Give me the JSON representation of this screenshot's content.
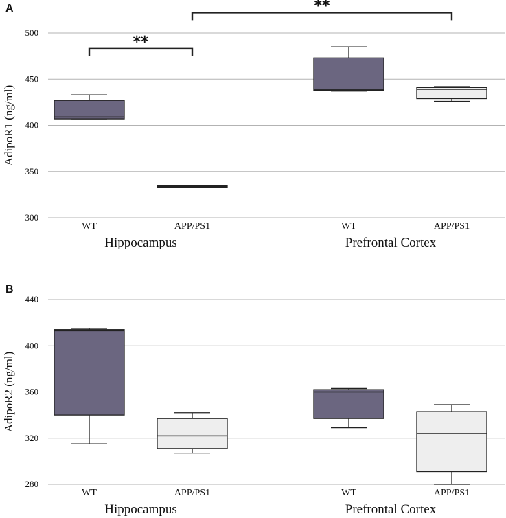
{
  "colors": {
    "wt_fill": "#6b6680",
    "app_fill": "#eeeeee",
    "stroke": "#222222",
    "grid": "#b3b3b3"
  },
  "chart_data": [
    {
      "panel_label": "A",
      "type": "box",
      "ylabel": "AdipoR1 (ng/ml)",
      "ylim": [
        300,
        500
      ],
      "yticks": [
        300,
        350,
        400,
        450,
        500
      ],
      "grid": true,
      "groups": [
        {
          "name": "Hippocampus",
          "categories": [
            "WT",
            "APP/PS1"
          ]
        },
        {
          "name": "Prefrontal Cortex",
          "categories": [
            "WT",
            "APP/PS1"
          ]
        }
      ],
      "boxes": [
        {
          "group": "Hippocampus",
          "category": "WT",
          "series": "WT",
          "min": 407,
          "q1": 407,
          "median": 409,
          "q3": 427,
          "max": 433
        },
        {
          "group": "Hippocampus",
          "category": "APP/PS1",
          "series": "APP/PS1",
          "min": 333,
          "q1": 333,
          "median": 334,
          "q3": 335,
          "max": 335
        },
        {
          "group": "Prefrontal Cortex",
          "category": "WT",
          "series": "WT",
          "min": 437,
          "q1": 438,
          "median": 439,
          "q3": 473,
          "max": 485
        },
        {
          "group": "Prefrontal Cortex",
          "category": "APP/PS1",
          "series": "APP/PS1",
          "min": 426,
          "q1": 429,
          "median": 439,
          "q3": 441,
          "max": 442
        }
      ],
      "significance": [
        {
          "label": "**",
          "from": "Hippocampus WT",
          "to": "Hippocampus APP/PS1",
          "at": 483
        },
        {
          "label": "**",
          "from": "Hippocampus APP/PS1",
          "to": "Prefrontal Cortex APP/PS1",
          "at": 522
        }
      ]
    },
    {
      "panel_label": "B",
      "type": "box",
      "ylabel": "AdipoR2 (ng/ml)",
      "ylim": [
        280,
        440
      ],
      "yticks": [
        280,
        320,
        360,
        400,
        440
      ],
      "grid": true,
      "groups": [
        {
          "name": "Hippocampus",
          "categories": [
            "WT",
            "APP/PS1"
          ]
        },
        {
          "name": "Prefrontal Cortex",
          "categories": [
            "WT",
            "APP/PS1"
          ]
        }
      ],
      "boxes": [
        {
          "group": "Hippocampus",
          "category": "WT",
          "series": "WT",
          "min": 315,
          "q1": 340,
          "median": 413,
          "q3": 414,
          "max": 415
        },
        {
          "group": "Hippocampus",
          "category": "APP/PS1",
          "series": "APP/PS1",
          "min": 307,
          "q1": 311,
          "median": 322,
          "q3": 337,
          "max": 342
        },
        {
          "group": "Prefrontal Cortex",
          "category": "WT",
          "series": "WT",
          "min": 329,
          "q1": 337,
          "median": 360,
          "q3": 362,
          "max": 363
        },
        {
          "group": "Prefrontal Cortex",
          "category": "APP/PS1",
          "series": "APP/PS1",
          "min": 280,
          "q1": 291,
          "median": 324,
          "q3": 343,
          "max": 349
        }
      ],
      "significance": []
    }
  ]
}
